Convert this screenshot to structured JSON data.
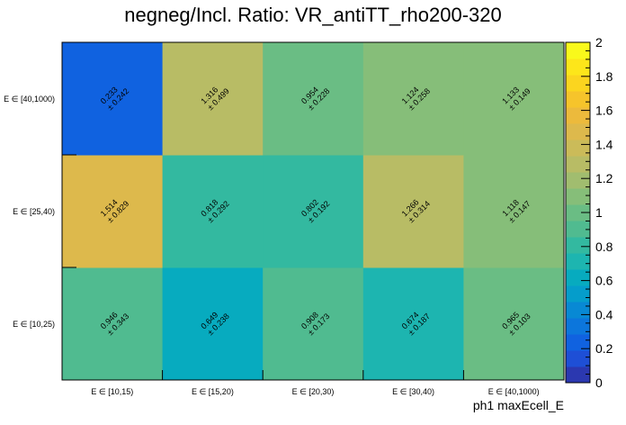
{
  "chart_data": {
    "type": "heatmap",
    "title": "negneg/Incl. Ratio: VR_antiTT_rho200-320",
    "xlabel": "ph1 maxEcell_E",
    "ylabel": "",
    "x_categories": [
      "E ∈ [10,15)",
      "E ∈ [15,20)",
      "E ∈ [20,30)",
      "E ∈ [30,40)",
      "E ∈ [40,1000)"
    ],
    "y_categories": [
      "E ∈ [10,25)",
      "E ∈ [25,40)",
      "E ∈ [40,1000)"
    ],
    "cells": [
      [
        {
          "value": "0.946",
          "error": "± 0.343"
        },
        {
          "value": "0.649",
          "error": "± 0.238"
        },
        {
          "value": "0.908",
          "error": "± 0.173"
        },
        {
          "value": "0.674",
          "error": "± 0.187"
        },
        {
          "value": "0.965",
          "error": "± 0.103"
        }
      ],
      [
        {
          "value": "1.514",
          "error": "± 0.829"
        },
        {
          "value": "0.818",
          "error": "± 0.292"
        },
        {
          "value": "0.802",
          "error": "± 0.192"
        },
        {
          "value": "1.266",
          "error": "± 0.314"
        },
        {
          "value": "1.118",
          "error": "± 0.147"
        }
      ],
      [
        {
          "value": "0.233",
          "error": "± 0.242"
        },
        {
          "value": "1.316",
          "error": "± 0.499"
        },
        {
          "value": "0.954",
          "error": "± 0.228"
        },
        {
          "value": "1.124",
          "error": "± 0.258"
        },
        {
          "value": "1.133",
          "error": "± 0.149"
        }
      ]
    ],
    "zlim": [
      0,
      2
    ],
    "colorbar_ticks": [
      "0",
      "0.2",
      "0.4",
      "0.6",
      "0.8",
      "1",
      "1.2",
      "1.4",
      "1.6",
      "1.8",
      "2"
    ],
    "palette": [
      "#2b38b0",
      "#1e4fd6",
      "#1062e0",
      "#0c76dc",
      "#0889d4",
      "#059dcb",
      "#07abbf",
      "#1db5b0",
      "#33b9a0",
      "#50bb90",
      "#6abd84",
      "#86be79",
      "#a1bd6f",
      "#b8bc65",
      "#cbbb59",
      "#ddb94c",
      "#ecba3c",
      "#f6c42b",
      "#fbd51f",
      "#fde61a",
      "#f9f91b"
    ],
    "grid": false
  }
}
